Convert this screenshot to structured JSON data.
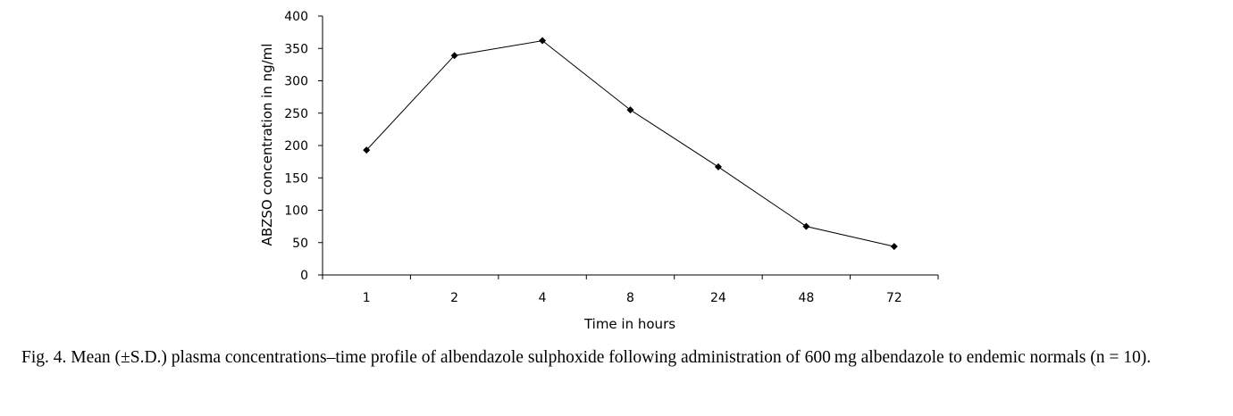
{
  "chart_data": {
    "type": "line",
    "xlabel": "Time in hours",
    "ylabel": "ABZSO concentration in ng/ml",
    "categories": [
      "1",
      "2",
      "4",
      "8",
      "24",
      "48",
      "72"
    ],
    "y_ticks": [
      "0",
      "50",
      "100",
      "150",
      "200",
      "250",
      "300",
      "350",
      "400"
    ],
    "ylim": [
      0,
      400
    ],
    "series": [
      {
        "values": [
          193,
          339,
          362,
          255,
          167,
          75,
          44
        ],
        "color": "#000000",
        "marker": "diamond"
      }
    ],
    "grid": false,
    "legend": "none"
  },
  "caption": "Fig. 4. Mean (±S.D.) plasma concentrations–time profile of albendazole sulphoxide following administration of 600 mg albendazole to endemic normals (n = 10)."
}
